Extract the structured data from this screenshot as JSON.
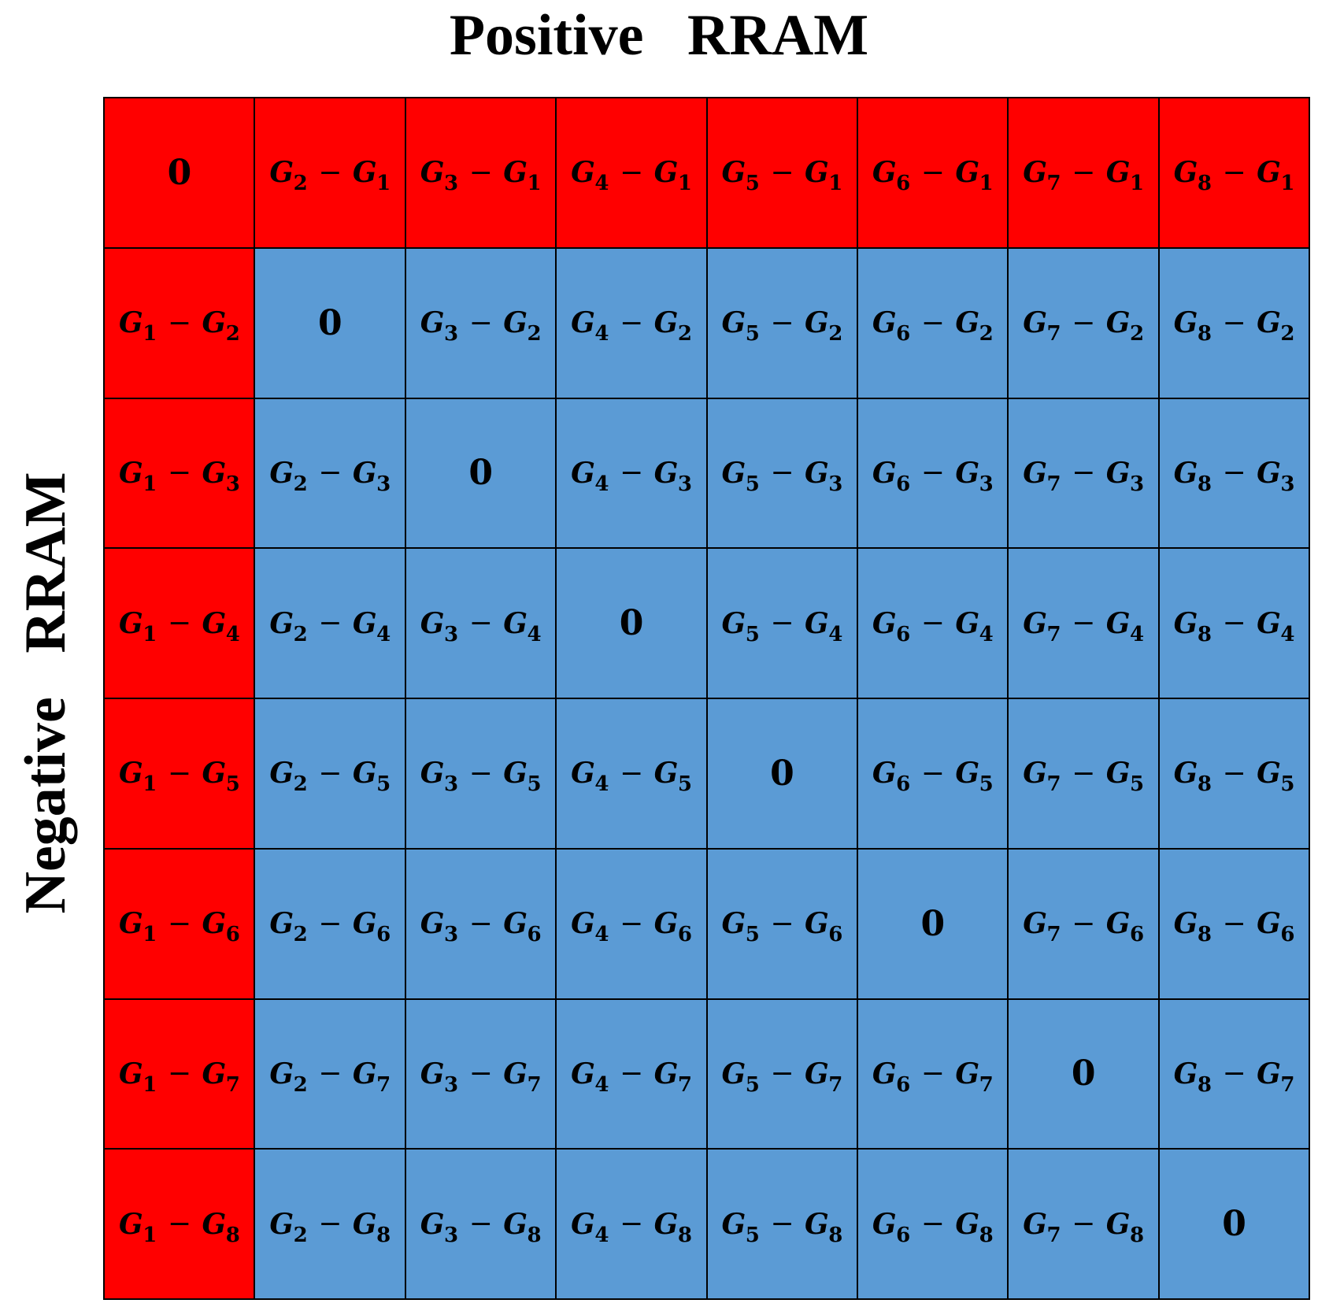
{
  "title_top": "Positive   RRAM",
  "title_left": "Negative   RRAM",
  "colors": {
    "positive_cell": "#ff0000",
    "negative_cell": "#5b9bd5",
    "grid_line": "#000000"
  },
  "matrix": {
    "rows": [
      [
        "0",
        "G2 − G1",
        "G3 − G1",
        "G4 − G1",
        "G5 − G1",
        "G6 − G1",
        "G7 − G1",
        "G8 − G1"
      ],
      [
        "G1 − G2",
        "0",
        "G3 − G2",
        "G4 − G2",
        "G5 − G2",
        "G6 − G2",
        "G7 − G2",
        "G8 − G2"
      ],
      [
        "G1 − G3",
        "G2 − G3",
        "0",
        "G4 − G3",
        "G5 − G3",
        "G6 − G3",
        "G7 − G3",
        "G8 − G3"
      ],
      [
        "G1 − G4",
        "G2 − G4",
        "G3 − G4",
        "0",
        "G5 − G4",
        "G6 − G4",
        "G7 − G4",
        "G8 − G4"
      ],
      [
        "G1 − G5",
        "G2 − G5",
        "G3 − G5",
        "G4 − G5",
        "0",
        "G6 − G5",
        "G7 − G5",
        "G8 − G5"
      ],
      [
        "G1 − G6",
        "G2 − G6",
        "G3 − G6",
        "G4 − G6",
        "G5 − G6",
        "0",
        "G7 − G6",
        "G8 − G6"
      ],
      [
        "G1 − G7",
        "G2 − G7",
        "G3 − G7",
        "G4 − G7",
        "G5 − G7",
        "G6 − G7",
        "0",
        "G8 − G7"
      ],
      [
        "G1 − G8",
        "G2 − G8",
        "G3 − G8",
        "G4 − G8",
        "G5 − G8",
        "G6 − G8",
        "G7 − G8",
        "0"
      ]
    ],
    "positive_cells": "first row and first column",
    "negative_cells": "remaining 7×7 block"
  }
}
